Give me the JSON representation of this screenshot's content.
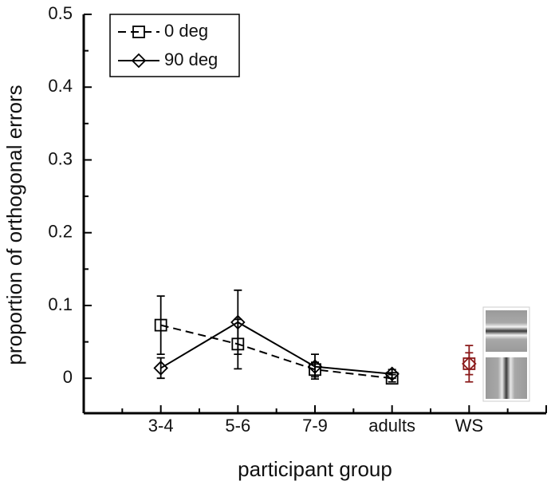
{
  "chart_data": {
    "type": "line",
    "x_label": "participant group",
    "y_label": "proportion of orthogonal errors",
    "categories": [
      "3-4",
      "5-6",
      "7-9",
      "adults",
      "WS"
    ],
    "ylim": [
      -0.048,
      0.5
    ],
    "yticks": [
      0.5,
      0.4,
      0.3,
      0.2,
      0.1,
      0
    ],
    "series": [
      {
        "name": "0 deg",
        "color": "#000000",
        "dash": true,
        "marker": "square",
        "values": [
          0.073,
          0.047,
          0.012,
          0,
          0.02
        ],
        "errors": [
          0.04,
          0.034,
          0.01,
          0.005,
          0.015
        ],
        "point_colors": [
          "#000000",
          "#000000",
          "#000000",
          "#000000",
          "#8b1a1a"
        ]
      },
      {
        "name": "90 deg",
        "color": "#000000",
        "dash": false,
        "marker": "diamond",
        "values": [
          0.014,
          0.077,
          0.016,
          0.006,
          0.02
        ],
        "errors": [
          0.014,
          0.044,
          0.017,
          0.006,
          0.025
        ],
        "point_colors": [
          "#000000",
          "#000000",
          "#000000",
          "#000000",
          "#8b1a1a"
        ]
      }
    ]
  }
}
